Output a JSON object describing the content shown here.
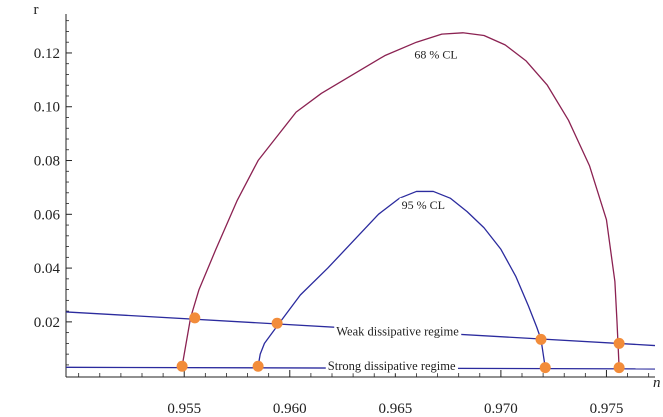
{
  "chart_data": {
    "type": "line",
    "title": "",
    "xlabel": "n",
    "ylabel": "r",
    "xlim": [
      0.9494,
      0.9773
    ],
    "ylim": [
      -0.0005,
      0.133
    ],
    "x_ticks": [
      {
        "value": 0.955,
        "label": "0.955"
      },
      {
        "value": 0.96,
        "label": "0.960"
      },
      {
        "value": 0.965,
        "label": "0.965"
      },
      {
        "value": 0.97,
        "label": "0.970"
      },
      {
        "value": 0.975,
        "label": "0.975"
      }
    ],
    "y_ticks": [
      {
        "value": 0.02,
        "label": "0.02"
      },
      {
        "value": 0.04,
        "label": "0.04"
      },
      {
        "value": 0.06,
        "label": "0.06"
      },
      {
        "value": 0.08,
        "label": "0.08"
      },
      {
        "value": 0.1,
        "label": "0.10"
      },
      {
        "value": 0.12,
        "label": "0.12"
      }
    ],
    "series": [
      {
        "name": "68 % CL",
        "color": "#8B2252",
        "x": [
          0.9549,
          0.955,
          0.9553,
          0.9557,
          0.9565,
          0.9575,
          0.9585,
          0.9595,
          0.9603,
          0.9615,
          0.963,
          0.9645,
          0.966,
          0.9672,
          0.9682,
          0.9692,
          0.9702,
          0.9712,
          0.9722,
          0.9732,
          0.9742,
          0.975,
          0.9754,
          0.9755,
          0.9756
        ],
        "y": [
          0.0035,
          0.008,
          0.0215,
          0.032,
          0.047,
          0.065,
          0.08,
          0.09,
          0.098,
          0.105,
          0.112,
          0.119,
          0.124,
          0.127,
          0.1275,
          0.1265,
          0.123,
          0.117,
          0.108,
          0.095,
          0.078,
          0.058,
          0.035,
          0.02,
          0.003
        ]
      },
      {
        "name": "95 % CL",
        "color": "#2B2B9E",
        "x": [
          0.9585,
          0.9586,
          0.9588,
          0.9595,
          0.9605,
          0.9618,
          0.963,
          0.9642,
          0.9652,
          0.966,
          0.9668,
          0.9676,
          0.9684,
          0.9692,
          0.97,
          0.9707,
          0.9713,
          0.9717,
          0.9719,
          0.9721
        ],
        "y": [
          0.0035,
          0.008,
          0.012,
          0.0195,
          0.03,
          0.04,
          0.05,
          0.06,
          0.066,
          0.0685,
          0.0685,
          0.066,
          0.061,
          0.055,
          0.047,
          0.037,
          0.026,
          0.018,
          0.0135,
          0.003
        ]
      },
      {
        "name": "Weak dissipative regime",
        "color": "#2B2B9E",
        "x": [
          0.9494,
          0.9773
        ],
        "y": [
          0.0237,
          0.0112
        ]
      },
      {
        "name": "Strong dissipative regime",
        "color": "#2B2B9E",
        "x": [
          0.9494,
          0.9773
        ],
        "y": [
          0.0031,
          0.0025
        ]
      }
    ],
    "points": {
      "color": "#F28C3A",
      "x": [
        0.9555,
        0.9594,
        0.9719,
        0.9756,
        0.9549,
        0.9585,
        0.9721,
        0.9756
      ],
      "y": [
        0.0215,
        0.0195,
        0.0135,
        0.012,
        0.0035,
        0.0035,
        0.003,
        0.003
      ]
    },
    "annotations": [
      {
        "text": "68 % CL",
        "x": 0.9659,
        "y": 0.1195
      },
      {
        "text": "95 % CL",
        "x": 0.9653,
        "y": 0.0635
      },
      {
        "text": "Weak dissipative regime",
        "x": 0.9622,
        "y": 0.0165
      },
      {
        "text": "Strong dissipative regime",
        "x": 0.9618,
        "y": 0.0035
      }
    ],
    "grid": false,
    "legend": "none"
  }
}
